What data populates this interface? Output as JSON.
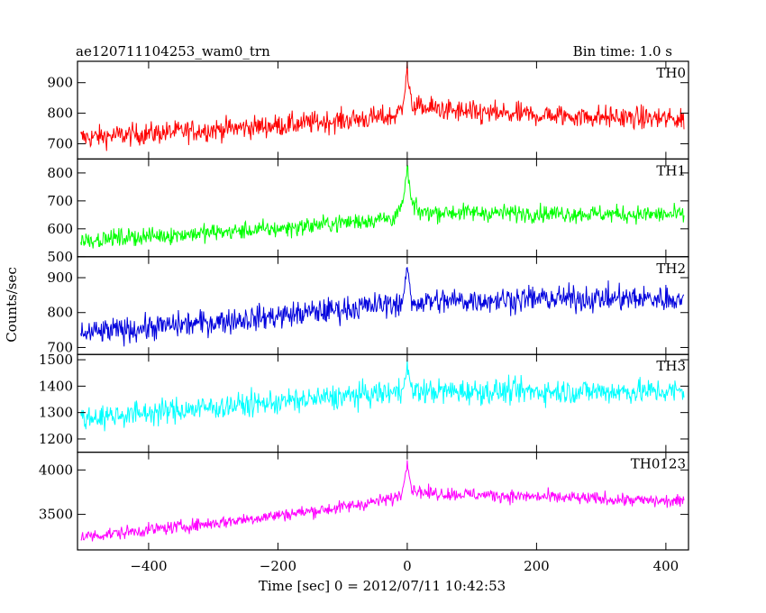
{
  "chart_data": {
    "type": "line",
    "title": "ae120711104253_wam0_trn",
    "subtitle": "Bin time: 1.0 s",
    "xlabel": "Time [sec] 0 = 2012/07/11 10:42:53",
    "ylabel": "Counts/sec",
    "xlim": [
      -510,
      435
    ],
    "xticks": [
      -400,
      -200,
      0,
      200,
      400
    ],
    "xtick_labels": [
      "−400",
      "−200",
      "0",
      "200",
      "400"
    ],
    "grid": false,
    "colors": {
      "TH0": "#ff0000",
      "TH1": "#00ff00",
      "TH2": "#0000dd",
      "TH3": "#00ffff",
      "TH0123": "#ff00ff"
    },
    "panels": [
      {
        "name": "TH0",
        "ylim": [
          650,
          970
        ],
        "yticks": [
          700,
          800,
          900
        ],
        "trend": [
          [
            -500,
            720
          ],
          [
            -200,
            760
          ],
          [
            -20,
            790
          ],
          [
            0,
            830
          ],
          [
            20,
            820
          ],
          [
            100,
            800
          ],
          [
            430,
            780
          ]
        ],
        "noise": 35,
        "spike": {
          "x": 0,
          "peak": 970
        }
      },
      {
        "name": "TH1",
        "ylim": [
          500,
          850
        ],
        "yticks": [
          500,
          600,
          700,
          800
        ],
        "trend": [
          [
            -500,
            560
          ],
          [
            -200,
            600
          ],
          [
            -20,
            640
          ],
          [
            0,
            700
          ],
          [
            20,
            660
          ],
          [
            430,
            650
          ]
        ],
        "noise": 30,
        "spike": {
          "x": 0,
          "peak": 850
        }
      },
      {
        "name": "TH2",
        "ylim": [
          680,
          960
        ],
        "yticks": [
          700,
          800,
          900
        ],
        "trend": [
          [
            -500,
            740
          ],
          [
            -200,
            790
          ],
          [
            0,
            830
          ],
          [
            200,
            840
          ],
          [
            430,
            840
          ]
        ],
        "noise": 35,
        "spike": {
          "x": 0,
          "peak": 960
        }
      },
      {
        "name": "TH3",
        "ylim": [
          1150,
          1520
        ],
        "yticks": [
          1200,
          1300,
          1400,
          1500
        ],
        "trend": [
          [
            -500,
            1280
          ],
          [
            -200,
            1340
          ],
          [
            0,
            1380
          ],
          [
            430,
            1380
          ]
        ],
        "noise": 45,
        "spike": {
          "x": 0,
          "peak": 1500
        }
      },
      {
        "name": "TH0123",
        "ylim": [
          3100,
          4200
        ],
        "yticks": [
          3500,
          4000
        ],
        "trend": [
          [
            -500,
            3250
          ],
          [
            -300,
            3400
          ],
          [
            -100,
            3580
          ],
          [
            -20,
            3680
          ],
          [
            0,
            3800
          ],
          [
            30,
            3740
          ],
          [
            430,
            3640
          ]
        ],
        "noise": 70,
        "spike": {
          "x": 0,
          "peak": 4150
        }
      }
    ]
  }
}
